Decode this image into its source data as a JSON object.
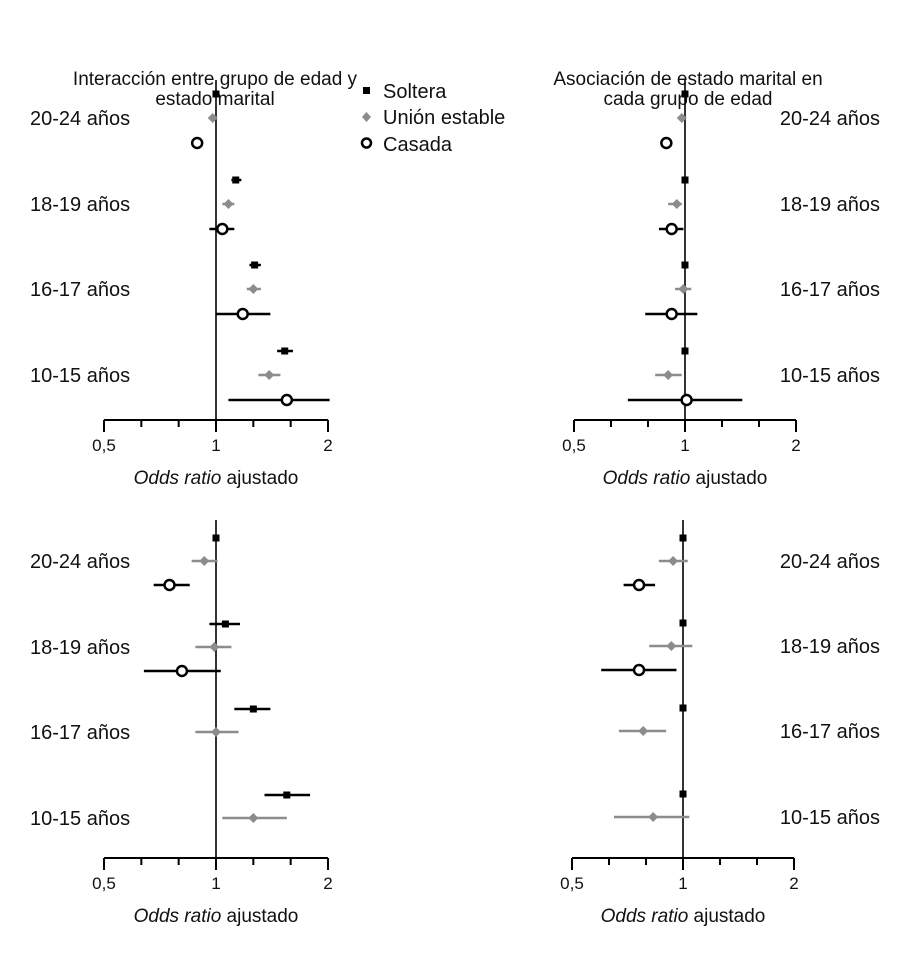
{
  "legend": [
    {
      "series": "Soltera",
      "label": "Soltera",
      "marker": "square",
      "color": "#000000"
    },
    {
      "series": "Union",
      "label": "Unión estable",
      "marker": "diamond",
      "color": "#8c8c8c"
    },
    {
      "series": "Casada",
      "label": "Casada",
      "marker": "circle",
      "color": "#000000"
    }
  ],
  "chart_data": [
    {
      "type": "forest",
      "title_lines": [
        "Interacción entre grupo de edad y",
        "estado marital"
      ],
      "xscale": "log",
      "xlim": [
        0.5,
        2
      ],
      "xticks": [
        "0,5",
        "1",
        "2"
      ],
      "xlabel_italic": "Odds ratio",
      "xlabel_rest": "ajustado",
      "rows": [
        {
          "label": "20-24 años",
          "points": [
            {
              "series": "Soltera",
              "or": 1.0,
              "lo": 1.0,
              "hi": 1.0
            },
            {
              "series": "Union",
              "or": 0.98,
              "lo": 0.98,
              "hi": 0.98
            },
            {
              "series": "Casada",
              "or": 0.89,
              "lo": 0.89,
              "hi": 0.89
            }
          ]
        },
        {
          "label": "18-19 años",
          "points": [
            {
              "series": "Soltera",
              "or": 1.13,
              "lo": 1.1,
              "hi": 1.17
            },
            {
              "series": "Union",
              "or": 1.08,
              "lo": 1.04,
              "hi": 1.12
            },
            {
              "series": "Casada",
              "or": 1.04,
              "lo": 0.96,
              "hi": 1.12
            }
          ]
        },
        {
          "label": "16-17 años",
          "points": [
            {
              "series": "Soltera",
              "or": 1.27,
              "lo": 1.23,
              "hi": 1.32
            },
            {
              "series": "Union",
              "or": 1.26,
              "lo": 1.21,
              "hi": 1.32
            },
            {
              "series": "Casada",
              "or": 1.18,
              "lo": 1.0,
              "hi": 1.4
            }
          ]
        },
        {
          "label": "10-15 años",
          "points": [
            {
              "series": "Soltera",
              "or": 1.53,
              "lo": 1.46,
              "hi": 1.61
            },
            {
              "series": "Union",
              "or": 1.39,
              "lo": 1.3,
              "hi": 1.49
            },
            {
              "series": "Casada",
              "or": 1.55,
              "lo": 1.08,
              "hi": 2.02
            }
          ]
        }
      ]
    },
    {
      "type": "forest",
      "title_lines": [
        "Asociación de estado marital en",
        "cada grupo de edad"
      ],
      "xscale": "log",
      "xlim": [
        0.5,
        2
      ],
      "xticks": [
        "0,5",
        "1",
        "2"
      ],
      "xlabel_italic": "Odds ratio",
      "xlabel_rest": "ajustado",
      "rows": [
        {
          "label": "20-24 años",
          "points": [
            {
              "series": "Soltera",
              "or": 1.0,
              "lo": 1.0,
              "hi": 1.0
            },
            {
              "series": "Union",
              "or": 0.98,
              "lo": 0.98,
              "hi": 0.98
            },
            {
              "series": "Casada",
              "or": 0.89,
              "lo": 0.89,
              "hi": 0.89
            }
          ]
        },
        {
          "label": "18-19 años",
          "points": [
            {
              "series": "Soltera",
              "or": 1.0,
              "lo": 1.0,
              "hi": 1.0
            },
            {
              "series": "Union",
              "or": 0.95,
              "lo": 0.9,
              "hi": 0.98
            },
            {
              "series": "Casada",
              "or": 0.92,
              "lo": 0.85,
              "hi": 0.99
            }
          ]
        },
        {
          "label": "16-17 años",
          "points": [
            {
              "series": "Soltera",
              "or": 1.0,
              "lo": 1.0,
              "hi": 1.0
            },
            {
              "series": "Union",
              "or": 0.99,
              "lo": 0.94,
              "hi": 1.04
            },
            {
              "series": "Casada",
              "or": 0.92,
              "lo": 0.78,
              "hi": 1.08
            }
          ]
        },
        {
          "label": "10-15 años",
          "points": [
            {
              "series": "Soltera",
              "or": 1.0,
              "lo": 1.0,
              "hi": 1.0
            },
            {
              "series": "Union",
              "or": 0.9,
              "lo": 0.83,
              "hi": 0.98
            },
            {
              "series": "Casada",
              "or": 1.01,
              "lo": 0.7,
              "hi": 1.43
            }
          ]
        }
      ]
    },
    {
      "type": "forest",
      "title_lines": [],
      "xscale": "log",
      "xlim": [
        0.5,
        2
      ],
      "xticks": [
        "0,5",
        "1",
        "2"
      ],
      "xlabel_italic": "Odds ratio",
      "xlabel_rest": "ajustado",
      "rows": [
        {
          "label": "20-24 años",
          "points": [
            {
              "series": "Soltera",
              "or": 1.0,
              "lo": 1.0,
              "hi": 1.0
            },
            {
              "series": "Union",
              "or": 0.93,
              "lo": 0.86,
              "hi": 1.01
            },
            {
              "series": "Casada",
              "or": 0.75,
              "lo": 0.68,
              "hi": 0.85
            }
          ]
        },
        {
          "label": "18-19 años",
          "points": [
            {
              "series": "Soltera",
              "or": 1.06,
              "lo": 0.96,
              "hi": 1.16
            },
            {
              "series": "Union",
              "or": 0.99,
              "lo": 0.88,
              "hi": 1.1
            },
            {
              "series": "Casada",
              "or": 0.81,
              "lo": 0.64,
              "hi": 1.03
            }
          ]
        },
        {
          "label": "16-17 años",
          "points": [
            {
              "series": "Soltera",
              "or": 1.26,
              "lo": 1.12,
              "hi": 1.4
            },
            {
              "series": "Union",
              "or": 1.0,
              "lo": 0.88,
              "hi": 1.15
            }
          ]
        },
        {
          "label": "10-15 años",
          "points": [
            {
              "series": "Soltera",
              "or": 1.55,
              "lo": 1.35,
              "hi": 1.79
            },
            {
              "series": "Union",
              "or": 1.26,
              "lo": 1.04,
              "hi": 1.55
            }
          ]
        }
      ]
    },
    {
      "type": "forest",
      "title_lines": [],
      "xscale": "log",
      "xlim": [
        0.5,
        2
      ],
      "xticks": [
        "0,5",
        "1",
        "2"
      ],
      "xlabel_italic": "Odds ratio",
      "xlabel_rest": "ajustado",
      "rows": [
        {
          "label": "20-24 años",
          "points": [
            {
              "series": "Soltera",
              "or": 1.0,
              "lo": 1.0,
              "hi": 1.0
            },
            {
              "series": "Union",
              "or": 0.94,
              "lo": 0.86,
              "hi": 1.03
            },
            {
              "series": "Casada",
              "or": 0.76,
              "lo": 0.69,
              "hi": 0.84
            }
          ]
        },
        {
          "label": "18-19 años",
          "points": [
            {
              "series": "Soltera",
              "or": 1.0,
              "lo": 1.0,
              "hi": 1.0
            },
            {
              "series": "Union",
              "or": 0.93,
              "lo": 0.81,
              "hi": 1.06
            },
            {
              "series": "Casada",
              "or": 0.76,
              "lo": 0.6,
              "hi": 0.96
            }
          ]
        },
        {
          "label": "16-17 años",
          "points": [
            {
              "series": "Soltera",
              "or": 1.0,
              "lo": 1.0,
              "hi": 1.0
            },
            {
              "series": "Union",
              "or": 0.78,
              "lo": 0.67,
              "hi": 0.9
            }
          ]
        },
        {
          "label": "10-15 años",
          "points": [
            {
              "series": "Soltera",
              "or": 1.0,
              "lo": 1.0,
              "hi": 1.0
            },
            {
              "series": "Union",
              "or": 0.83,
              "lo": 0.65,
              "hi": 1.04
            }
          ]
        }
      ]
    }
  ]
}
